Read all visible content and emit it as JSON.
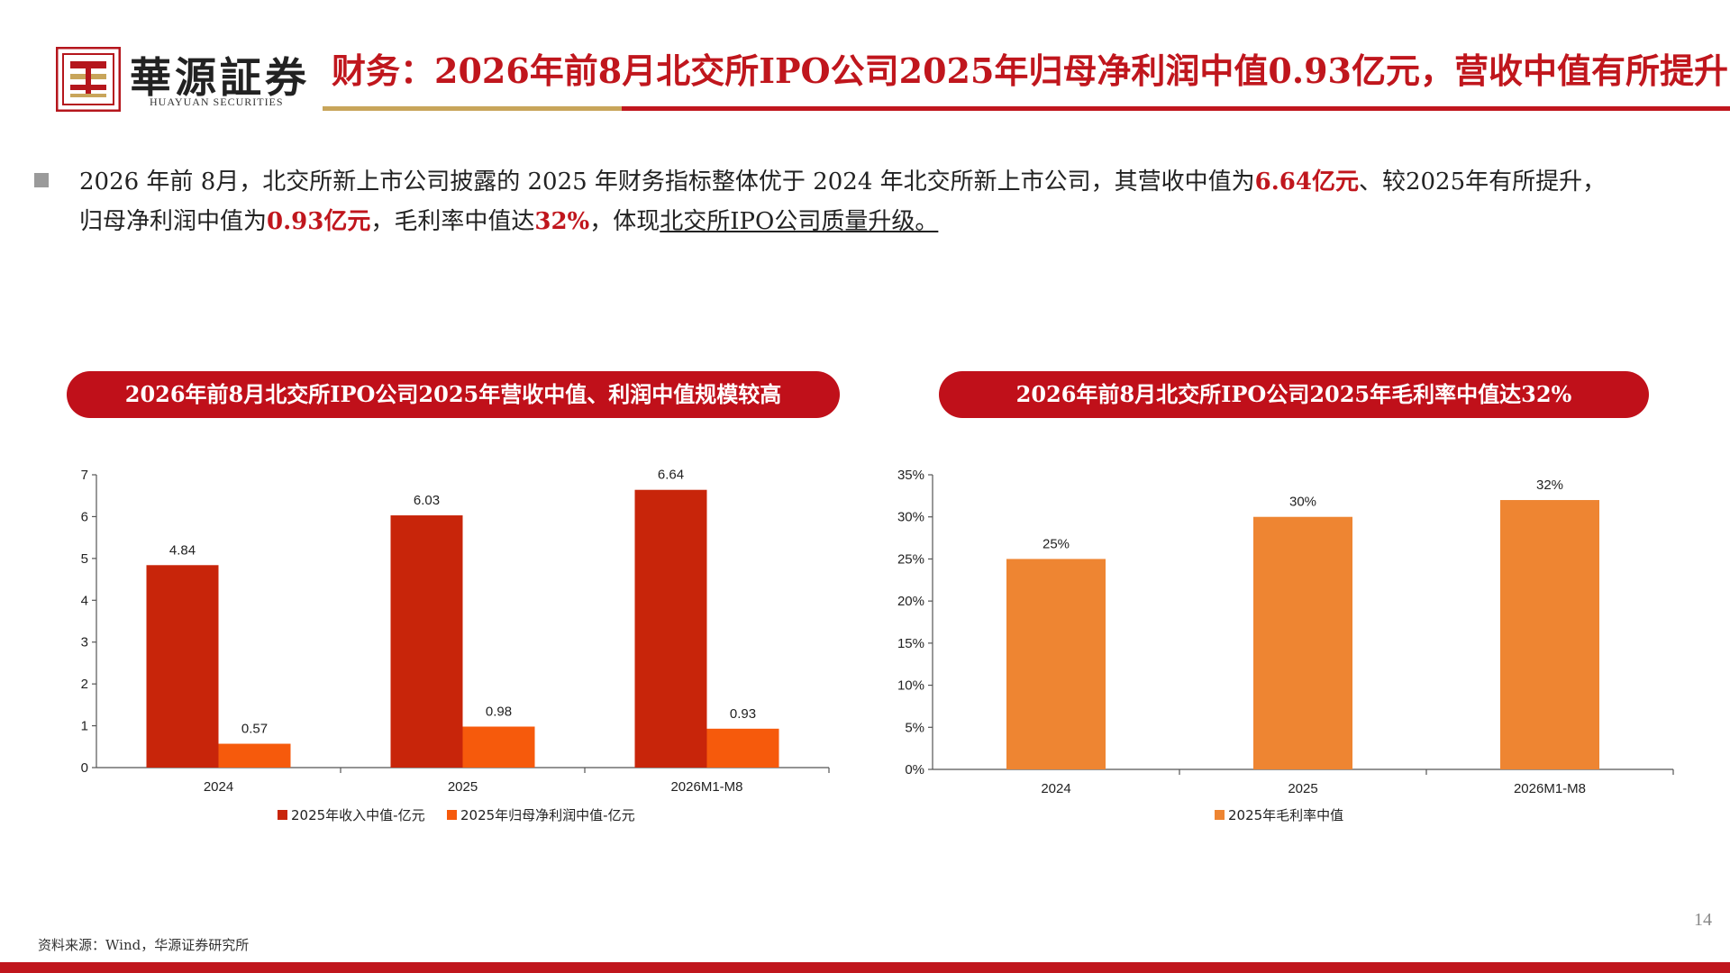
{
  "header": {
    "logo_cn": "華源証券",
    "logo_en": "HUAYUAN SECURITIES",
    "title": "财务：2026年前8月北交所IPO公司2025年归母净利润中值0.93亿元，营收中值有所提升"
  },
  "summary": {
    "p1": "2026 年前 8月，北交所新上市公司披露的 2025 年财务指标整体优于 2024 年北交所新上市公司，其营收中值为",
    "h1": "6.64亿元",
    "p2": "、较2025年有所提升，归母净利润中值为",
    "h2": "0.93亿元",
    "p3": "，毛利率中值达",
    "h3": "32%",
    "p4": "，体现",
    "u1": "北交所IPO公司质量升级。"
  },
  "left_panel": {
    "title": "2026年前8月北交所IPO公司2025年营收中值、利润中值规模较高"
  },
  "right_panel": {
    "title": "2026年前8月北交所IPO公司2025年毛利率中值达32%"
  },
  "colors": {
    "red_bar": "#c8250a",
    "orange_bar": "#f65a0c",
    "gold_bar": "#ee8532",
    "brand_red": "#c0161d"
  },
  "chart_data": [
    {
      "type": "bar",
      "categories": [
        "2024",
        "2025",
        "2026M1-M8"
      ],
      "series": [
        {
          "name": "2025年收入中值-亿元",
          "values": [
            4.84,
            6.03,
            6.64
          ],
          "labels": [
            "4.84",
            "6.03",
            "6.64"
          ]
        },
        {
          "name": "2025年归母净利润中值-亿元",
          "values": [
            0.57,
            0.98,
            0.93
          ],
          "labels": [
            "0.57",
            "0.98",
            "0.93"
          ]
        }
      ],
      "ylim": [
        0,
        7
      ],
      "yticks": [
        "0",
        "1",
        "2",
        "3",
        "4",
        "5",
        "6",
        "7"
      ],
      "legend": "bottom"
    },
    {
      "type": "bar",
      "categories": [
        "2024",
        "2025",
        "2026M1-M8"
      ],
      "series": [
        {
          "name": "2025年毛利率中值",
          "values": [
            25,
            30,
            32
          ],
          "labels": [
            "25%",
            "30%",
            "32%"
          ]
        }
      ],
      "ylim": [
        0,
        35
      ],
      "yticks": [
        "0%",
        "5%",
        "10%",
        "15%",
        "20%",
        "25%",
        "30%",
        "35%"
      ],
      "legend": "bottom"
    }
  ],
  "footer": {
    "source": "资料来源：Wind，华源证券研究所",
    "page": "14"
  }
}
